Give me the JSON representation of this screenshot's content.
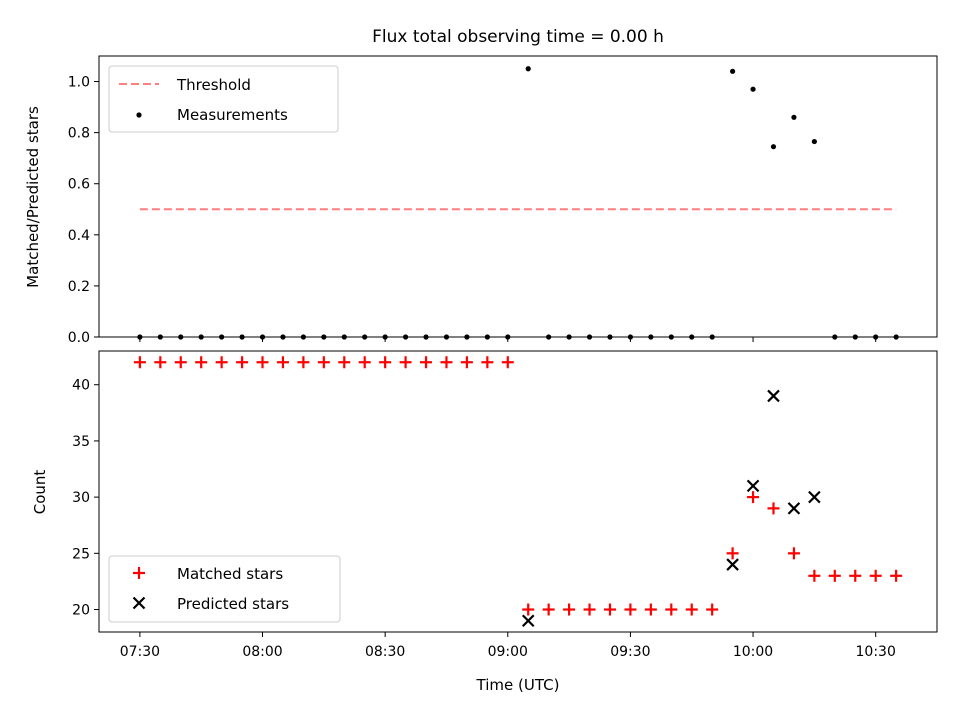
{
  "chart_data": [
    {
      "type": "scatter",
      "title": "Flux total observing time = 0.00 h",
      "xlabel": "",
      "ylabel": "Matched/Predicted stars",
      "xlim": [
        "07:20",
        "10:45"
      ],
      "ylim": [
        0,
        1.1
      ],
      "yticks": [
        "0.0",
        "0.2",
        "0.4",
        "0.6",
        "0.8",
        "1.0"
      ],
      "legend_placement": "upper-left",
      "threshold": {
        "name": "Threshold",
        "value": 0.5,
        "x_start": "07:30",
        "x_end": "10:35",
        "color": "#ff7f7f",
        "style": "dashed"
      },
      "series": [
        {
          "name": "Measurements",
          "color": "#000000",
          "marker": "dot",
          "points": [
            [
              "07:30",
              0
            ],
            [
              "07:35",
              0
            ],
            [
              "07:40",
              0
            ],
            [
              "07:45",
              0
            ],
            [
              "07:50",
              0
            ],
            [
              "07:55",
              0
            ],
            [
              "08:00",
              0
            ],
            [
              "08:05",
              0
            ],
            [
              "08:10",
              0
            ],
            [
              "08:15",
              0
            ],
            [
              "08:20",
              0
            ],
            [
              "08:25",
              0
            ],
            [
              "08:30",
              0
            ],
            [
              "08:35",
              0
            ],
            [
              "08:40",
              0
            ],
            [
              "08:45",
              0
            ],
            [
              "08:50",
              0
            ],
            [
              "08:55",
              0
            ],
            [
              "09:00",
              0
            ],
            [
              "09:05",
              1.05
            ],
            [
              "09:10",
              0
            ],
            [
              "09:15",
              0
            ],
            [
              "09:20",
              0
            ],
            [
              "09:25",
              0
            ],
            [
              "09:30",
              0
            ],
            [
              "09:35",
              0
            ],
            [
              "09:40",
              0
            ],
            [
              "09:45",
              0
            ],
            [
              "09:50",
              0
            ],
            [
              "09:55",
              1.04
            ],
            [
              "10:00",
              0.97
            ],
            [
              "10:05",
              0.745
            ],
            [
              "10:10",
              0.86
            ],
            [
              "10:15",
              0.765
            ],
            [
              "10:20",
              0
            ],
            [
              "10:25",
              0
            ],
            [
              "10:30",
              0
            ],
            [
              "10:35",
              0
            ]
          ]
        }
      ]
    },
    {
      "type": "scatter",
      "title": "",
      "xlabel": "Time (UTC)",
      "ylabel": "Count",
      "xlim": [
        "07:20",
        "10:45"
      ],
      "ylim": [
        18,
        43
      ],
      "yticks": [
        "20",
        "25",
        "30",
        "35",
        "40"
      ],
      "xticks": [
        "07:30",
        "08:00",
        "08:30",
        "09:00",
        "09:30",
        "10:00",
        "10:30"
      ],
      "legend_placement": "lower-left",
      "series": [
        {
          "name": "Matched stars",
          "color": "#ff0000",
          "marker": "plus",
          "points": [
            [
              "07:30",
              42
            ],
            [
              "07:35",
              42
            ],
            [
              "07:40",
              42
            ],
            [
              "07:45",
              42
            ],
            [
              "07:50",
              42
            ],
            [
              "07:55",
              42
            ],
            [
              "08:00",
              42
            ],
            [
              "08:05",
              42
            ],
            [
              "08:10",
              42
            ],
            [
              "08:15",
              42
            ],
            [
              "08:20",
              42
            ],
            [
              "08:25",
              42
            ],
            [
              "08:30",
              42
            ],
            [
              "08:35",
              42
            ],
            [
              "08:40",
              42
            ],
            [
              "08:45",
              42
            ],
            [
              "08:50",
              42
            ],
            [
              "08:55",
              42
            ],
            [
              "09:00",
              42
            ],
            [
              "09:05",
              20
            ],
            [
              "09:10",
              20
            ],
            [
              "09:15",
              20
            ],
            [
              "09:20",
              20
            ],
            [
              "09:25",
              20
            ],
            [
              "09:30",
              20
            ],
            [
              "09:35",
              20
            ],
            [
              "09:40",
              20
            ],
            [
              "09:45",
              20
            ],
            [
              "09:50",
              20
            ],
            [
              "09:55",
              25
            ],
            [
              "10:00",
              30
            ],
            [
              "10:05",
              29
            ],
            [
              "10:10",
              25
            ],
            [
              "10:15",
              23
            ],
            [
              "10:20",
              23
            ],
            [
              "10:25",
              23
            ],
            [
              "10:30",
              23
            ],
            [
              "10:35",
              23
            ]
          ]
        },
        {
          "name": "Predicted stars",
          "color": "#000000",
          "marker": "x",
          "points": [
            [
              "09:05",
              19
            ],
            [
              "09:55",
              24
            ],
            [
              "10:00",
              31
            ],
            [
              "10:05",
              39
            ],
            [
              "10:10",
              29
            ],
            [
              "10:15",
              30
            ]
          ]
        }
      ]
    }
  ]
}
